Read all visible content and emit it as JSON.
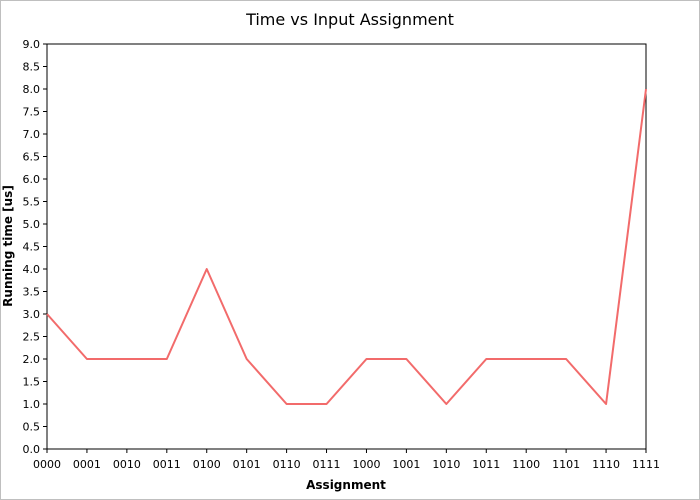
{
  "chart_data": {
    "type": "line",
    "title": "Time vs Input Assignment",
    "xlabel": "Assignment",
    "ylabel": "Running time [us]",
    "categories": [
      "0000",
      "0001",
      "0010",
      "0011",
      "0100",
      "0101",
      "0110",
      "0111",
      "1000",
      "1001",
      "1010",
      "1011",
      "1100",
      "1101",
      "1110",
      "1111"
    ],
    "series": [
      {
        "values": [
          3.0,
          2.0,
          2.0,
          2.0,
          4.0,
          2.0,
          1.0,
          1.0,
          2.0,
          2.0,
          1.0,
          2.0,
          2.0,
          2.0,
          1.0,
          8.0
        ]
      }
    ],
    "ylim": [
      0,
      9
    ],
    "ystep": 0.5,
    "yticks": [
      "0.0",
      "0.5",
      "1.0",
      "1.5",
      "2.0",
      "2.5",
      "3.0",
      "3.5",
      "4.0",
      "4.5",
      "5.0",
      "5.5",
      "6.0",
      "6.5",
      "7.0",
      "7.5",
      "8.0",
      "8.5",
      "9.0"
    ],
    "grid": false,
    "line_color": "#f26b6b"
  }
}
